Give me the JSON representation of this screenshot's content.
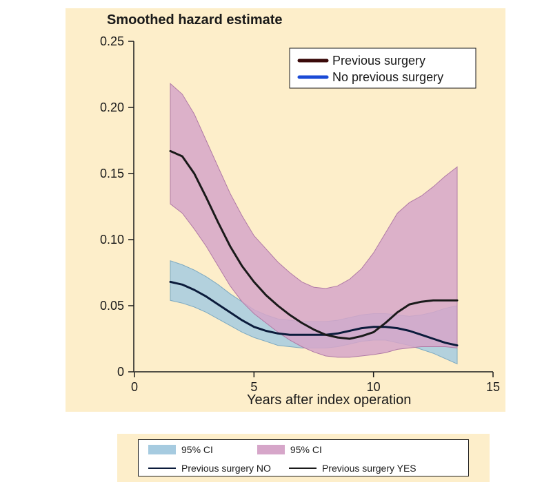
{
  "chart": {
    "type": "hazard-curve",
    "title": "Smoothed hazard estimate",
    "background_color": "#fdeeca",
    "plot_background_color": "#fdeeca",
    "axis_color": "#1a1a1a",
    "xlabel": "Years after index operation",
    "ylabel_values": [
      "0",
      "0.05",
      "0.10",
      "0.15",
      "0.20",
      "0.25"
    ],
    "ylim": [
      0,
      0.25
    ],
    "xlim": [
      0,
      15
    ],
    "xticks": [
      0,
      5,
      10,
      15
    ],
    "yticks": [
      0,
      0.05,
      0.1,
      0.15,
      0.2,
      0.25
    ],
    "label_fontsize": 20,
    "tick_fontsize": 18,
    "series": {
      "prev_yes_ci": {
        "color": "#d6a6c9",
        "opacity": 0.85,
        "stroke": "#b07aa5",
        "x": [
          1.5,
          2,
          2.5,
          3,
          3.5,
          4,
          4.5,
          5,
          5.5,
          6,
          6.5,
          7,
          7.5,
          8,
          8.5,
          9,
          9.5,
          10,
          10.5,
          11,
          11.5,
          12,
          12.5,
          13,
          13.5
        ],
        "upper": [
          0.218,
          0.21,
          0.195,
          0.175,
          0.155,
          0.135,
          0.118,
          0.103,
          0.093,
          0.083,
          0.075,
          0.068,
          0.064,
          0.063,
          0.065,
          0.07,
          0.078,
          0.09,
          0.105,
          0.12,
          0.128,
          0.133,
          0.14,
          0.148,
          0.155
        ],
        "lower": [
          0.127,
          0.12,
          0.108,
          0.095,
          0.08,
          0.065,
          0.053,
          0.044,
          0.037,
          0.03,
          0.024,
          0.019,
          0.015,
          0.012,
          0.011,
          0.011,
          0.012,
          0.013,
          0.0145,
          0.017,
          0.018,
          0.019,
          0.019,
          0.019,
          0.018
        ]
      },
      "prev_no_ci": {
        "color": "#a6cbe0",
        "opacity": 0.85,
        "stroke": "#7da9c0",
        "x": [
          1.5,
          2,
          2.5,
          3,
          3.5,
          4,
          4.5,
          5,
          5.5,
          6,
          6.5,
          7,
          7.5,
          8,
          8.5,
          9,
          9.5,
          10,
          10.5,
          11,
          11.5,
          12,
          12.5,
          13,
          13.5
        ],
        "upper": [
          0.084,
          0.081,
          0.077,
          0.072,
          0.066,
          0.059,
          0.053,
          0.047,
          0.043,
          0.04,
          0.039,
          0.038,
          0.038,
          0.038,
          0.039,
          0.041,
          0.043,
          0.044,
          0.044,
          0.043,
          0.042,
          0.043,
          0.045,
          0.048,
          0.05
        ],
        "lower": [
          0.054,
          0.052,
          0.049,
          0.045,
          0.04,
          0.035,
          0.03,
          0.026,
          0.023,
          0.02,
          0.019,
          0.018,
          0.018,
          0.018,
          0.019,
          0.021,
          0.023,
          0.024,
          0.024,
          0.022,
          0.02,
          0.017,
          0.014,
          0.01,
          0.006
        ]
      },
      "prev_yes_line": {
        "color": "#1a1a1a",
        "width": 3,
        "x": [
          1.5,
          2,
          2.5,
          3,
          3.5,
          4,
          4.5,
          5,
          5.5,
          6,
          6.5,
          7,
          7.5,
          8,
          8.5,
          9,
          9.5,
          10,
          10.5,
          11,
          11.5,
          12,
          12.5,
          13,
          13.5
        ],
        "y": [
          0.167,
          0.163,
          0.15,
          0.132,
          0.113,
          0.095,
          0.08,
          0.068,
          0.058,
          0.05,
          0.043,
          0.037,
          0.032,
          0.028,
          0.026,
          0.025,
          0.027,
          0.03,
          0.037,
          0.045,
          0.051,
          0.053,
          0.054,
          0.054,
          0.054
        ]
      },
      "prev_no_line": {
        "color": "#0b1b3b",
        "width": 3,
        "x": [
          1.5,
          2,
          2.5,
          3,
          3.5,
          4,
          4.5,
          5,
          5.5,
          6,
          6.5,
          7,
          7.5,
          8,
          8.5,
          9,
          9.5,
          10,
          10.5,
          11,
          11.5,
          12,
          12.5,
          13,
          13.5
        ],
        "y": [
          0.068,
          0.066,
          0.062,
          0.057,
          0.051,
          0.045,
          0.039,
          0.034,
          0.031,
          0.029,
          0.028,
          0.028,
          0.028,
          0.028,
          0.029,
          0.031,
          0.033,
          0.034,
          0.034,
          0.033,
          0.031,
          0.028,
          0.025,
          0.022,
          0.02
        ]
      }
    },
    "inner_legend": {
      "background": "#ffffff",
      "border": "#1a1a1a",
      "items": [
        {
          "color": "#3a0a0a",
          "label": "Previous surgery"
        },
        {
          "color": "#1a4ad6",
          "label": "No previous surgery"
        }
      ]
    },
    "bottom_legend": {
      "ci_no": {
        "color": "#a6cbe0",
        "label": "95% CI"
      },
      "ci_yes": {
        "color": "#d6a6c9",
        "label": "95% CI"
      },
      "line_no": {
        "color": "#0b1b3b",
        "label": "Previous surgery NO"
      },
      "line_yes": {
        "color": "#1a1a1a",
        "label": "Previous surgery YES"
      }
    }
  }
}
